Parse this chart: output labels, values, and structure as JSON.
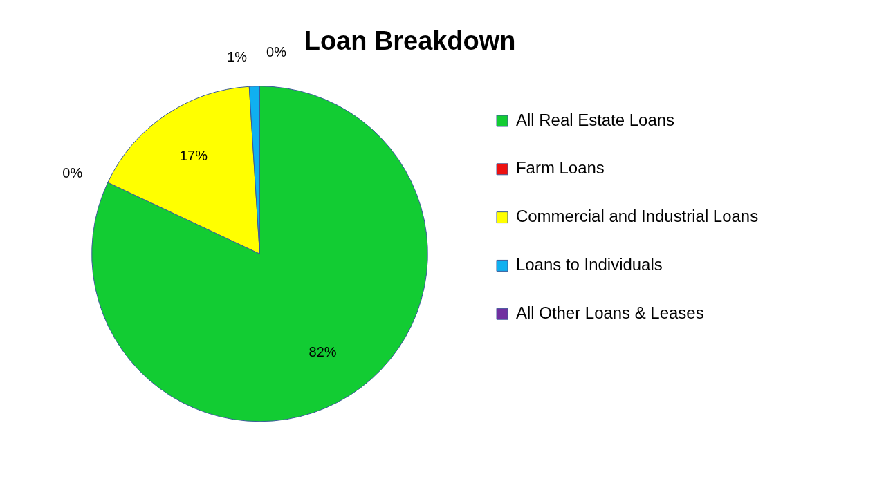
{
  "chart_data": {
    "type": "pie",
    "title": "Loan Breakdown",
    "categories": [
      "All Real Estate Loans",
      "Farm Loans",
      "Commercial and Industrial Loans",
      "Loans to Individuals",
      "All Other Loans & Leases"
    ],
    "values": [
      82,
      0,
      17,
      1,
      0
    ],
    "colors": [
      "#12cc33",
      "#ee1111",
      "#ffff00",
      "#10b0f0",
      "#7030a0"
    ],
    "value_labels": [
      "82%",
      "0%",
      "17%",
      "1%",
      "0%"
    ],
    "legend": "right"
  }
}
